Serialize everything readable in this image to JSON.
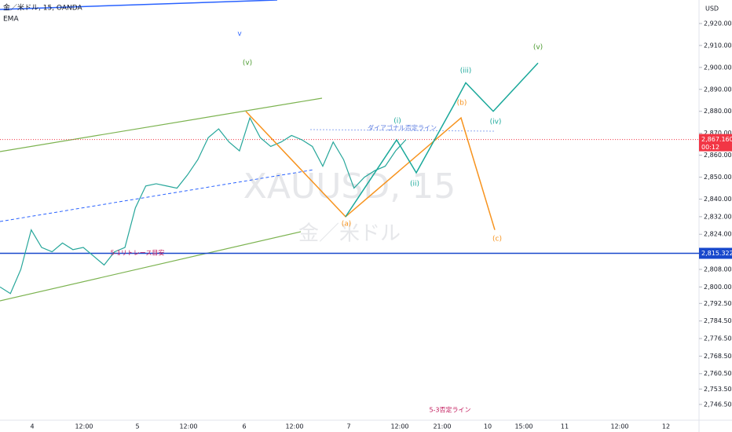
{
  "chart_data": {
    "type": "line",
    "symbol": "金／米ドル, 15, OANDA",
    "indicator": "EMA",
    "currency": "USD",
    "watermark": "XAUUSD, 15",
    "watermark_name": "金／米ドル",
    "ylim": [
      2739.3,
      2930.7
    ],
    "yticks": [
      {
        "value": 2920,
        "label": "2,920.000"
      },
      {
        "value": 2910,
        "label": "2,910.000"
      },
      {
        "value": 2900,
        "label": "2,900.000"
      },
      {
        "value": 2890,
        "label": "2,890.000"
      },
      {
        "value": 2880,
        "label": "2,880.000"
      },
      {
        "value": 2870,
        "label": "2,870.000"
      },
      {
        "value": 2860,
        "label": "2,860.000"
      },
      {
        "value": 2850,
        "label": "2,850.000"
      },
      {
        "value": 2840,
        "label": "2,840.000"
      },
      {
        "value": 2832,
        "label": "2,832.000"
      },
      {
        "value": 2824,
        "label": "2,824.000"
      },
      {
        "value": 2808,
        "label": "2,808.000"
      },
      {
        "value": 2800,
        "label": "2,800.000"
      },
      {
        "value": 2792.5,
        "label": "2,792.500"
      },
      {
        "value": 2784.5,
        "label": "2,784.500"
      },
      {
        "value": 2776.5,
        "label": "2,776.500"
      },
      {
        "value": 2768.5,
        "label": "2,768.500"
      },
      {
        "value": 2760.5,
        "label": "2,760.500"
      },
      {
        "value": 2753.5,
        "label": "2,753.500"
      },
      {
        "value": 2746.5,
        "label": "2,746.500"
      }
    ],
    "time_labels": [
      "4",
      "12:00",
      "5",
      "12:00",
      "6",
      "12:00",
      "7",
      "12:00",
      "21:00",
      "10",
      "15:00",
      "11",
      "12:00",
      "12"
    ],
    "series": [
      {
        "name": "XAUUSD",
        "color": "#26a69a",
        "values": [
          2800,
          2797,
          2808,
          2826,
          2818,
          2816,
          2820,
          2817,
          2818,
          2814,
          2810,
          2816,
          2818,
          2836,
          2846,
          2847,
          2846,
          2845,
          2851,
          2858,
          2868,
          2872,
          2866,
          2862,
          2877,
          2868,
          2864,
          2866,
          2869,
          2867,
          2864,
          2855,
          2866,
          2858,
          2845,
          2850,
          2853,
          2855,
          2862,
          2867.16
        ]
      },
      {
        "name": "Scenario A",
        "color": "#f7931e",
        "values": [
          2880,
          2832,
          2877,
          2826
        ]
      },
      {
        "name": "Scenario B",
        "color": "#1aa89a",
        "values": [
          2832,
          2867,
          2852,
          2883,
          2893,
          2880,
          2902
        ]
      }
    ],
    "last_price": {
      "value": 2867.16,
      "label": "2,867.160",
      "countdown": "00:12",
      "color": "#f23645"
    },
    "level": {
      "value": 2815.322,
      "label": "2,815.322",
      "color": "#1848cc"
    },
    "annotations": [
      {
        "text": "(v)",
        "color": "#4a9a2e"
      },
      {
        "text": "(i)",
        "color": "#1aa89a"
      },
      {
        "text": "(ii)",
        "color": "#1aa89a"
      },
      {
        "text": "(iii)",
        "color": "#1aa89a"
      },
      {
        "text": "(iv)",
        "color": "#1aa89a"
      },
      {
        "text": "(v)",
        "color": "#4a9a2e"
      },
      {
        "text": "(a)",
        "color": "#f7931e"
      },
      {
        "text": "(b)",
        "color": "#f7931e"
      },
      {
        "text": "(c)",
        "color": "#f7931e"
      },
      {
        "text": "v",
        "color": "#2962ff"
      },
      {
        "text": "ダイアゴナル否定ライン",
        "color": "#5b7be0"
      },
      {
        "text": "5-1リトレース目安",
        "color": "#c2185b"
      },
      {
        "text": "5-3否定ライン",
        "color": "#c2185b"
      }
    ]
  }
}
